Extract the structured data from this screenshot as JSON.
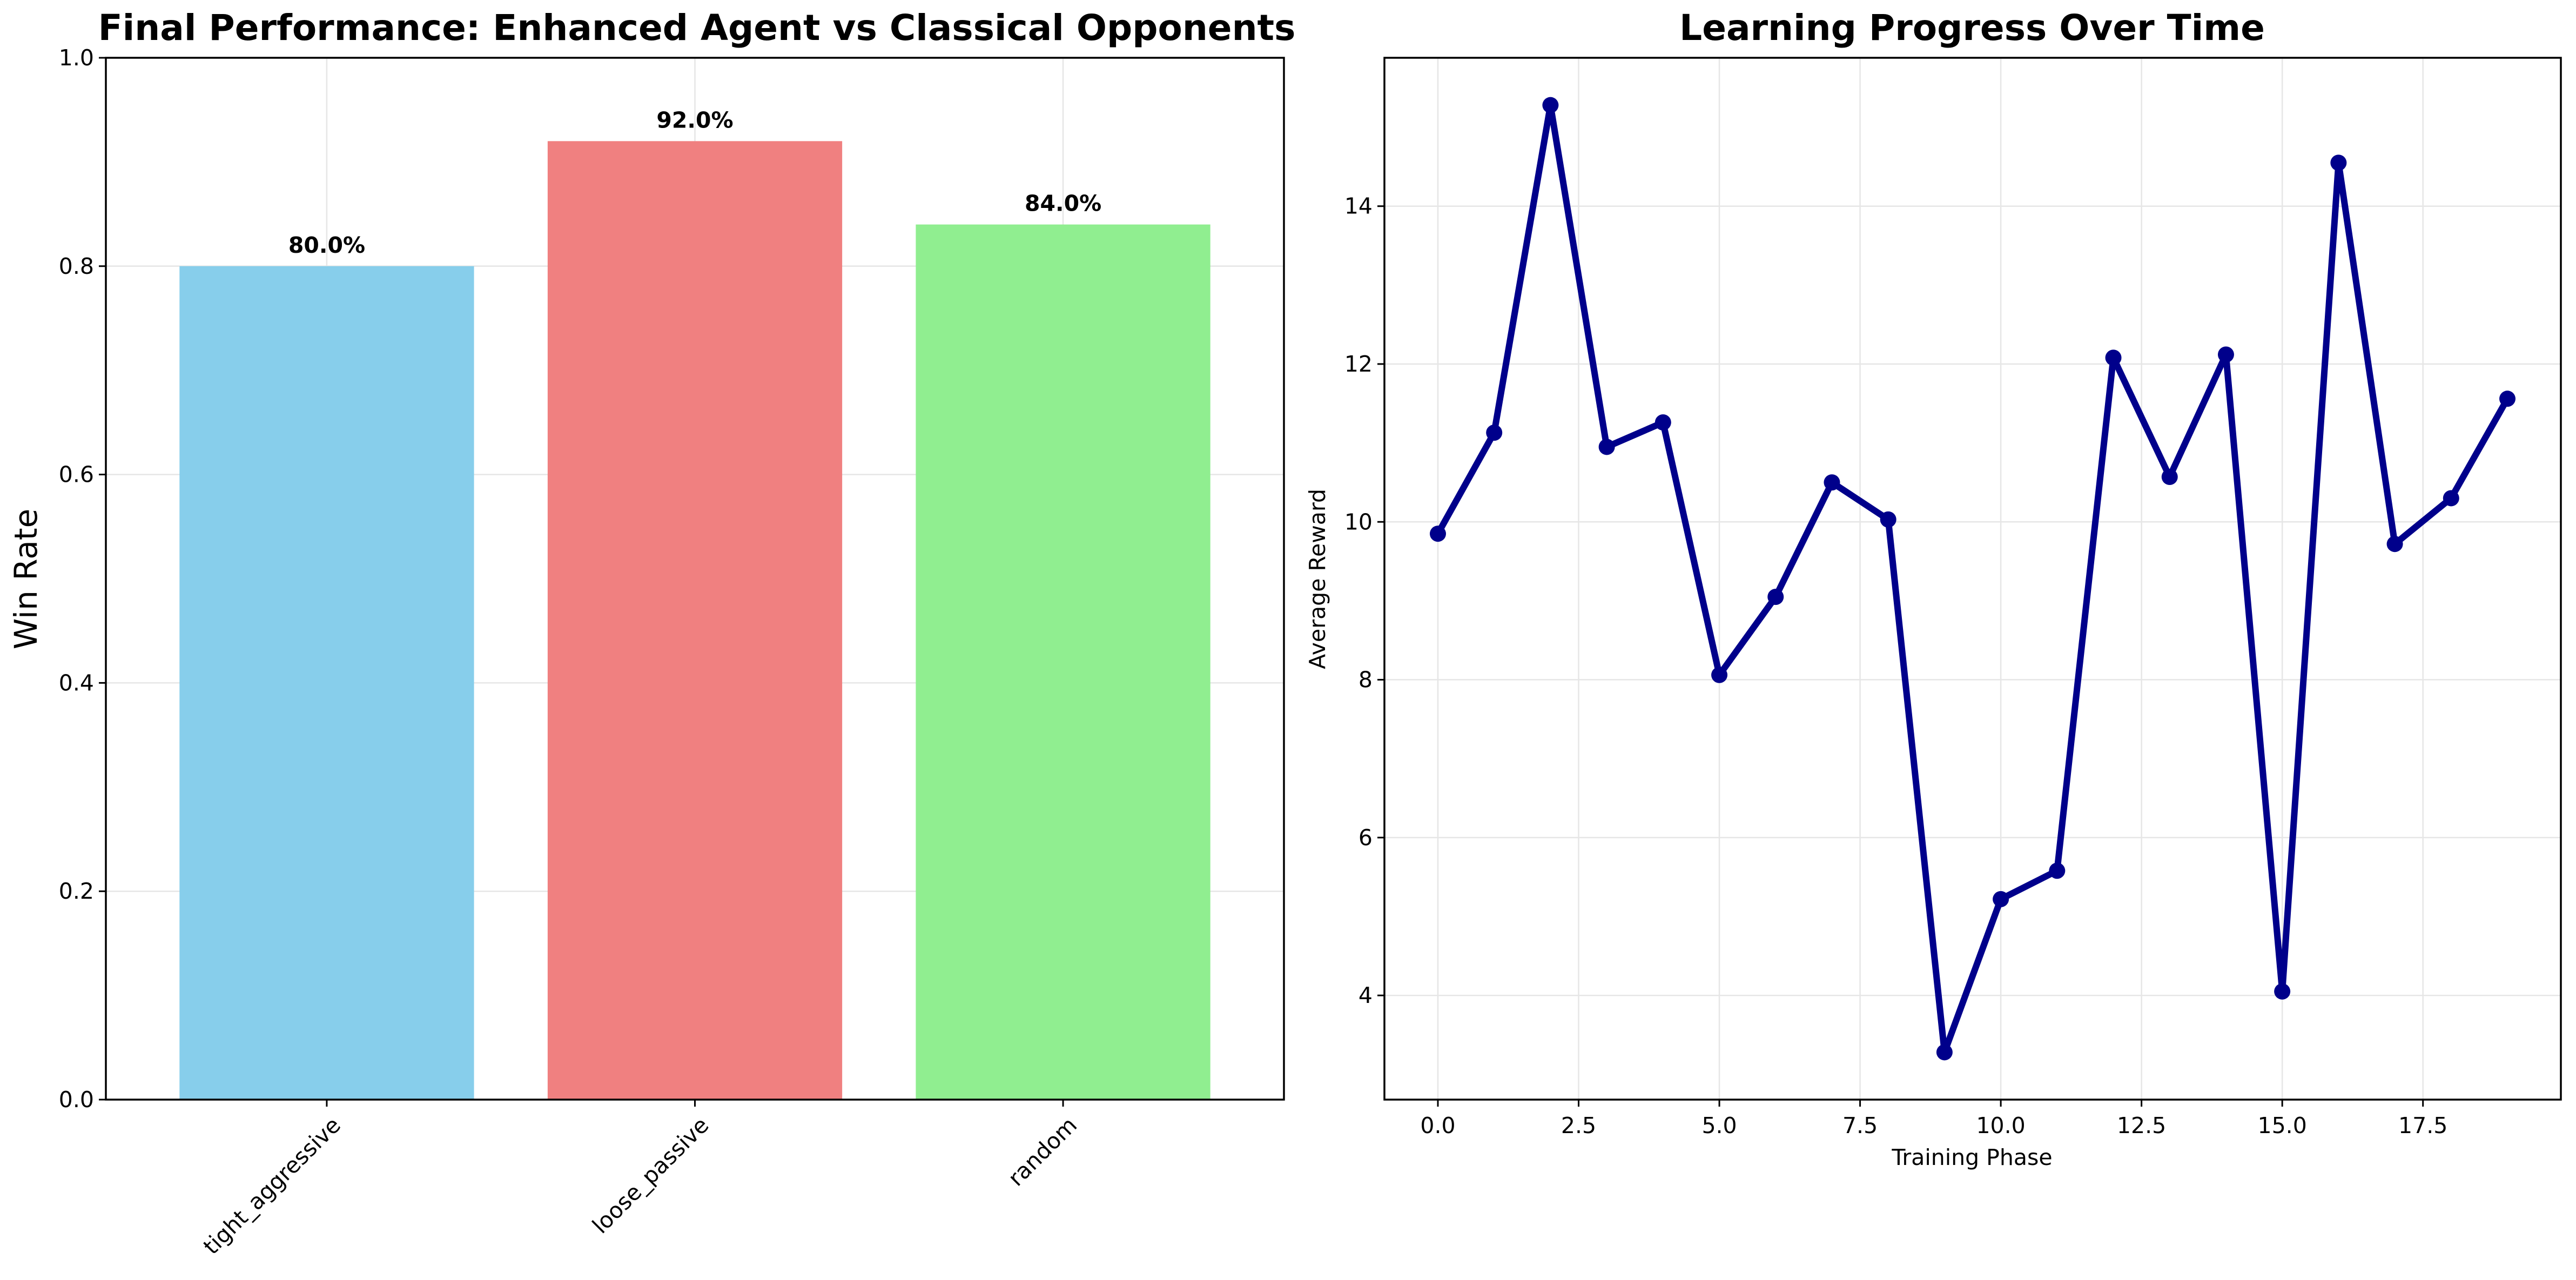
{
  "chart_data": [
    {
      "type": "bar",
      "title": "Final Performance: Enhanced Agent vs Classical Opponents",
      "xlabel": "",
      "ylabel": "Win Rate",
      "categories": [
        "tight_aggressive",
        "loose_passive",
        "random"
      ],
      "values": [
        0.8,
        0.92,
        0.84
      ],
      "data_labels": [
        "80.0%",
        "92.0%",
        "84.0%"
      ],
      "bar_colors": [
        "#87ceeb",
        "#f08080",
        "#90ee90"
      ],
      "ylim": [
        0,
        1.0
      ],
      "yticks": [
        0.0,
        0.2,
        0.4,
        0.6,
        0.8,
        1.0
      ],
      "ytick_labels": [
        "0.0",
        "0.2",
        "0.4",
        "0.6",
        "0.8",
        "1.0"
      ],
      "grid": true
    },
    {
      "type": "line",
      "title": "Learning Progress Over Time",
      "xlabel": "Training Phase",
      "ylabel": "Average Reward",
      "x": [
        0,
        1,
        2,
        3,
        4,
        5,
        6,
        7,
        8,
        9,
        10,
        11,
        12,
        13,
        14,
        15,
        16,
        17,
        18,
        19
      ],
      "y": [
        9.85,
        11.13,
        15.28,
        10.95,
        11.26,
        8.06,
        9.05,
        10.5,
        10.03,
        3.28,
        5.22,
        5.58,
        12.08,
        10.57,
        12.12,
        4.05,
        14.55,
        9.72,
        10.3,
        11.56
      ],
      "line_color": "#00008b",
      "xlim": [
        -0.95,
        19.95
      ],
      "ylim": [
        2.68,
        15.88
      ],
      "xticks": [
        0,
        2.5,
        5,
        7.5,
        10,
        12.5,
        15,
        17.5
      ],
      "xtick_labels": [
        "0.0",
        "2.5",
        "5.0",
        "7.5",
        "10.0",
        "12.5",
        "15.0",
        "17.5"
      ],
      "yticks": [
        4,
        6,
        8,
        10,
        12,
        14
      ],
      "ytick_labels": [
        "4",
        "6",
        "8",
        "10",
        "12",
        "14"
      ],
      "grid": true
    }
  ]
}
